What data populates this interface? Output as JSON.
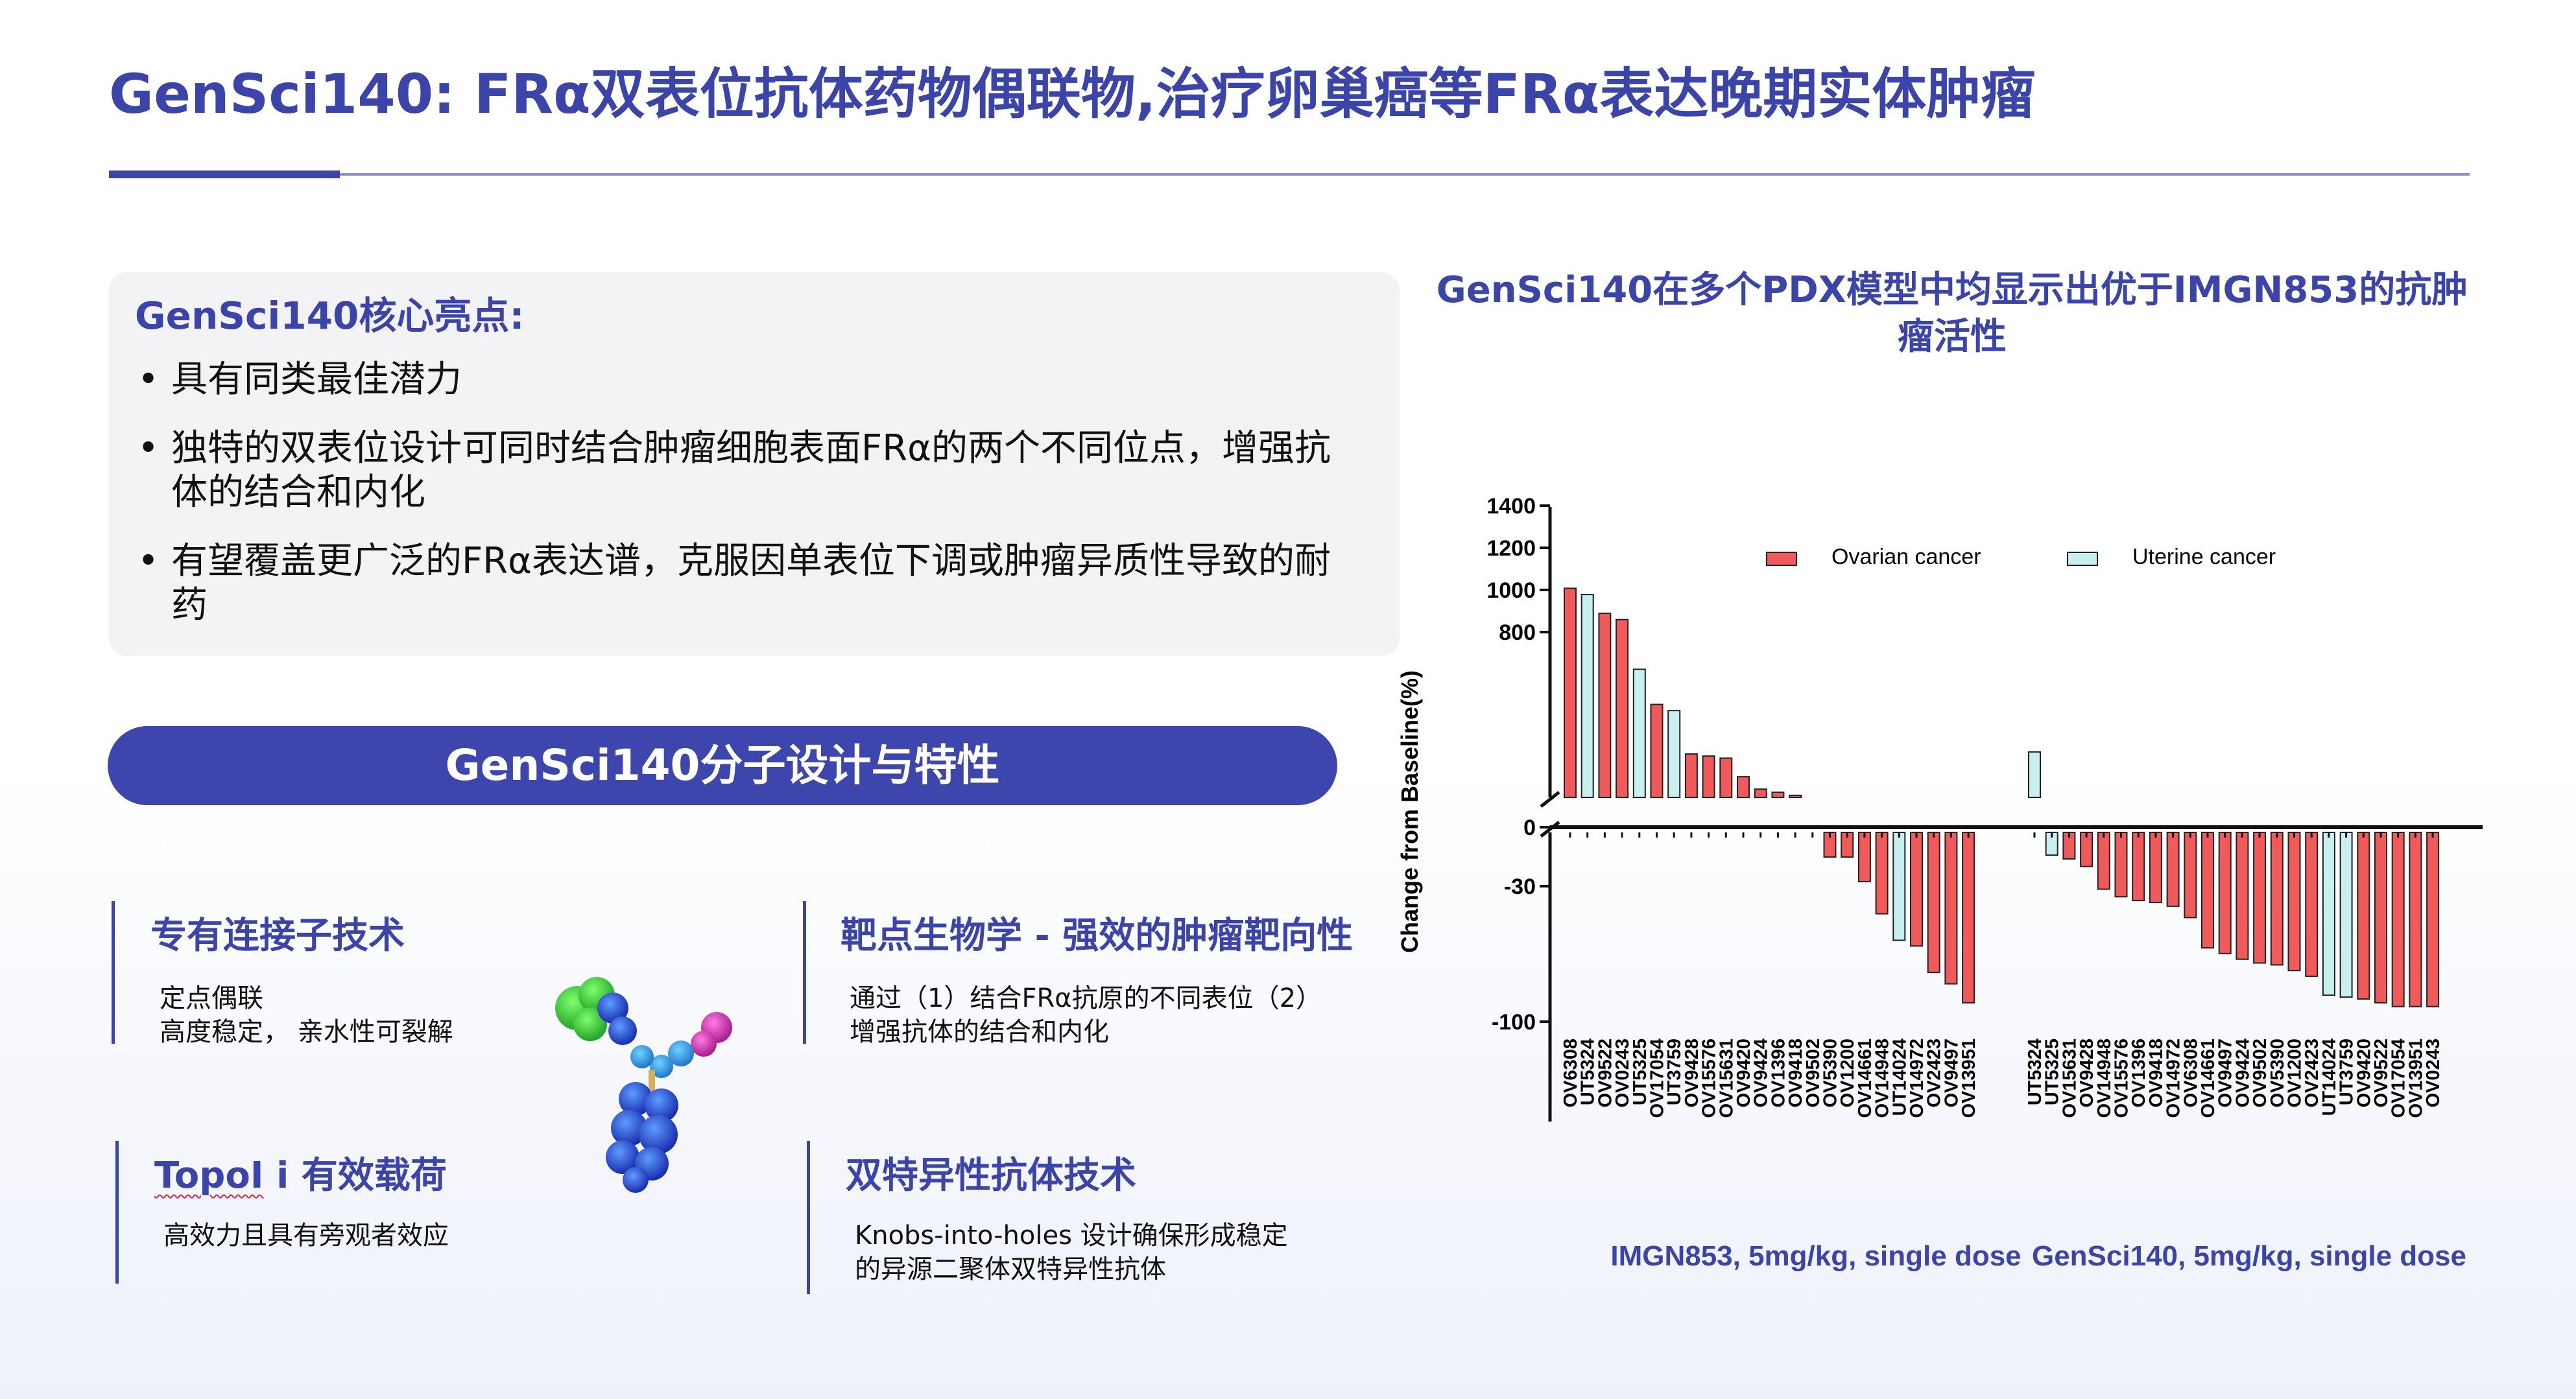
{
  "page_title": "GenSci140: FRα双表位抗体药物偶联物,治疗卵巢癌等FRα表达晚期实体肿瘤",
  "highlights": {
    "title": "GenSci140核心亮点:",
    "bullets": [
      "具有同类最佳潜力",
      "独特的双表位设计可同时结合肿瘤细胞表面FRα的两个不同位点，增强抗体的结合和内化",
      "有望覆盖更广泛的FRα表达谱，克服因单表位下调或肿瘤异质性导致的耐药"
    ]
  },
  "design_banner": "GenSci140分子设计与特性",
  "features": {
    "linker": {
      "title": "专有连接子技术",
      "desc": [
        "定点偶联",
        "高度稳定， 亲水性可裂解"
      ]
    },
    "target": {
      "title": "靶点生物学 - 强效的肿瘤靶向性",
      "desc": [
        "通过（1）结合FRα抗原的不同表位（2）",
        "增强抗体的结合和内化"
      ]
    },
    "payload": {
      "title_spell": "TopoI",
      "title_rest": " i 有效载荷",
      "desc": [
        "高效力且具有旁观者效应"
      ]
    },
    "bispecific": {
      "title": "双特异性抗体技术",
      "desc": [
        "Knobs-into-holes 设计确保形成稳定",
        "的异源二聚体双特异性抗体"
      ]
    }
  },
  "molecule_image": "antibody-3d-structure",
  "colors": {
    "brand": "#3b44a8",
    "ovarian": "#f05a5a",
    "uterine": "#c9f0f0",
    "molecule_green": "#39c43a",
    "molecule_magenta": "#d63ab0",
    "molecule_blue": "#1f3fd0"
  },
  "chart_data": {
    "type": "bar",
    "title": "GenSci140在多个PDX模型中均显示出优于IMGN853的抗肿瘤活性",
    "ylabel": "Change from Baseline(%)",
    "yticks_upper": [
      800,
      1000,
      1200,
      1400
    ],
    "yticks_lower": [
      0,
      -30,
      -100
    ],
    "axis_break": true,
    "legend": [
      {
        "name": "Ovarian cancer",
        "color": "#f05a5a"
      },
      {
        "name": "Uterine cancer",
        "color": "#c9f0f0"
      }
    ],
    "legend_position": "top",
    "groups": [
      {
        "label": "IMGN853, 5mg/kg, single dose",
        "bars": [
          {
            "model": "OV6308",
            "value": 1010,
            "type": "ovarian"
          },
          {
            "model": "UT5324",
            "value": 980,
            "type": "uterine"
          },
          {
            "model": "OV9522",
            "value": 890,
            "type": "ovarian"
          },
          {
            "model": "OV0243",
            "value": 860,
            "type": "ovarian"
          },
          {
            "model": "UT5325",
            "value": 620,
            "type": "uterine"
          },
          {
            "model": "OV17054",
            "value": 450,
            "type": "ovarian"
          },
          {
            "model": "UT3759",
            "value": 420,
            "type": "uterine"
          },
          {
            "model": "OV9428",
            "value": 210,
            "type": "ovarian"
          },
          {
            "model": "OV15576",
            "value": 200,
            "type": "ovarian"
          },
          {
            "model": "OV15631",
            "value": 190,
            "type": "ovarian"
          },
          {
            "model": "OV9420",
            "value": 100,
            "type": "ovarian"
          },
          {
            "model": "OV9424",
            "value": 40,
            "type": "ovarian"
          },
          {
            "model": "OV1396",
            "value": 25,
            "type": "ovarian"
          },
          {
            "model": "OV9418",
            "value": 10,
            "type": "ovarian"
          },
          {
            "model": "OV9502",
            "value": 0,
            "type": "ovarian"
          },
          {
            "model": "OV5390",
            "value": -13,
            "type": "ovarian"
          },
          {
            "model": "OV1200",
            "value": -13,
            "type": "ovarian"
          },
          {
            "model": "OV14661",
            "value": -26,
            "type": "ovarian"
          },
          {
            "model": "OV14948",
            "value": -43,
            "type": "ovarian"
          },
          {
            "model": "UT14024",
            "value": -57,
            "type": "uterine"
          },
          {
            "model": "OV14972",
            "value": -60,
            "type": "ovarian"
          },
          {
            "model": "OV2423",
            "value": -74,
            "type": "ovarian"
          },
          {
            "model": "OV9497",
            "value": -80,
            "type": "ovarian"
          },
          {
            "model": "OV13951",
            "value": -90,
            "type": "ovarian"
          }
        ]
      },
      {
        "label": "GenSci140, 5mg/kg, single dose",
        "bars": [
          {
            "model": "UT5324",
            "value": 220,
            "type": "uterine"
          },
          {
            "model": "UT5325",
            "value": -12,
            "type": "uterine"
          },
          {
            "model": "OV15631",
            "value": -14,
            "type": "ovarian"
          },
          {
            "model": "OV9428",
            "value": -18,
            "type": "ovarian"
          },
          {
            "model": "OV14948",
            "value": -30,
            "type": "ovarian"
          },
          {
            "model": "OV15576",
            "value": -34,
            "type": "ovarian"
          },
          {
            "model": "OV1396",
            "value": -36,
            "type": "ovarian"
          },
          {
            "model": "OV9418",
            "value": -37,
            "type": "ovarian"
          },
          {
            "model": "OV14972",
            "value": -39,
            "type": "ovarian"
          },
          {
            "model": "OV6308",
            "value": -45,
            "type": "ovarian"
          },
          {
            "model": "OV14661",
            "value": -61,
            "type": "ovarian"
          },
          {
            "model": "OV9497",
            "value": -64,
            "type": "ovarian"
          },
          {
            "model": "OV9424",
            "value": -67,
            "type": "ovarian"
          },
          {
            "model": "OV9502",
            "value": -69,
            "type": "ovarian"
          },
          {
            "model": "OV5390",
            "value": -70,
            "type": "ovarian"
          },
          {
            "model": "OV1200",
            "value": -73,
            "type": "ovarian"
          },
          {
            "model": "OV2423",
            "value": -76,
            "type": "ovarian"
          },
          {
            "model": "UT14024",
            "value": -86,
            "type": "uterine"
          },
          {
            "model": "UT3759",
            "value": -87,
            "type": "uterine"
          },
          {
            "model": "OV9420",
            "value": -88,
            "type": "ovarian"
          },
          {
            "model": "OV9522",
            "value": -90,
            "type": "ovarian"
          },
          {
            "model": "OV17054",
            "value": -92,
            "type": "ovarian"
          },
          {
            "model": "OV13951",
            "value": -92,
            "type": "ovarian"
          },
          {
            "model": "OV0243",
            "value": -92,
            "type": "ovarian"
          }
        ]
      }
    ]
  }
}
